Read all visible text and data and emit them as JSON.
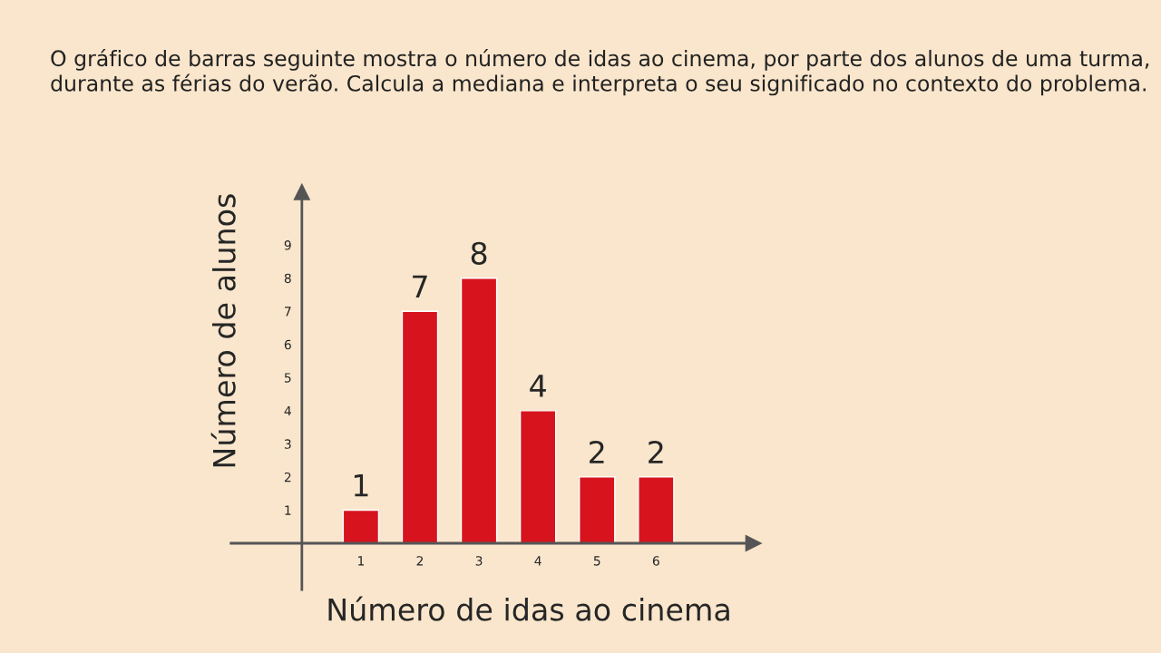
{
  "chart_data": {
    "type": "bar",
    "title": "O gráfico de barras seguinte mostra o número de idas ao cinema, por parte dos alunos de uma turma, durante as férias do verão. Calcula a mediana e interpreta o seu significado no contexto do problema.",
    "xlabel": "Número de idas ao cinema",
    "ylabel": "Número de alunos",
    "categories": [
      "1",
      "2",
      "3",
      "4",
      "5",
      "6"
    ],
    "values": [
      1,
      7,
      8,
      4,
      2,
      2
    ],
    "color": "#d7141e",
    "ylim": [
      -1.4,
      10.6
    ],
    "yticks": [
      1,
      2,
      3,
      4,
      5,
      6,
      7,
      8,
      9
    ],
    "data_labels": true,
    "grid": false
  }
}
